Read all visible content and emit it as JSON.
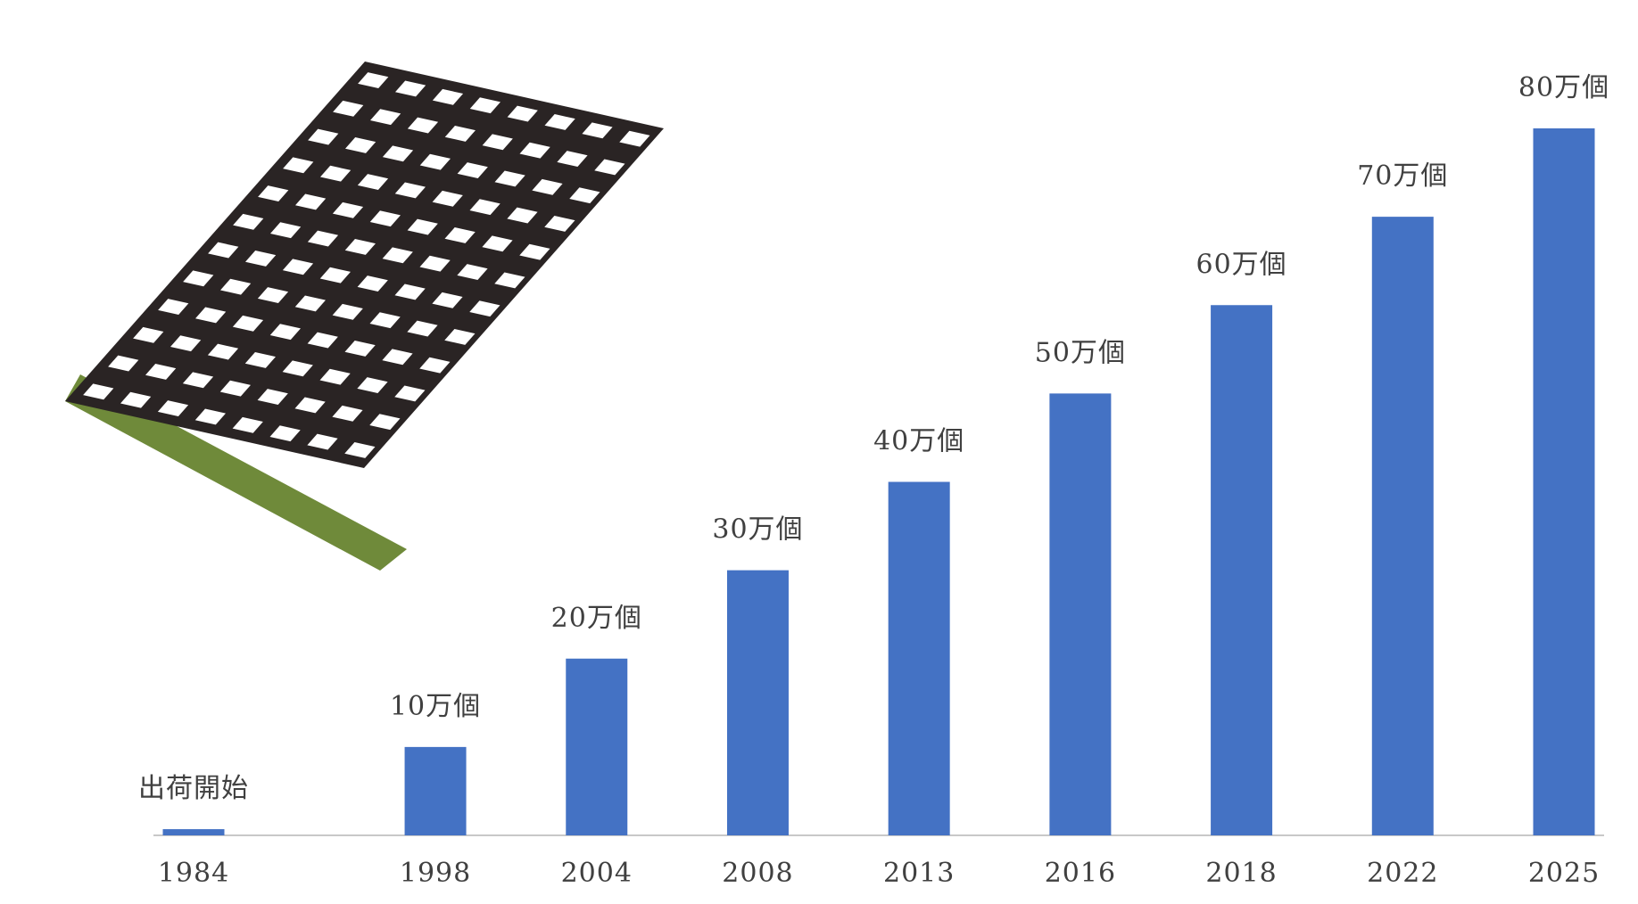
{
  "chart_data": {
    "type": "bar",
    "categories": [
      "1984",
      "1998",
      "2004",
      "2008",
      "2013",
      "2016",
      "2018",
      "2022",
      "2025"
    ],
    "values": [
      0.7,
      10,
      20,
      30,
      40,
      50,
      60,
      70,
      80
    ],
    "value_labels": [
      "出荷開始",
      "10万個",
      "20万個",
      "30万個",
      "40万個",
      "50万個",
      "60万個",
      "70万個",
      "80万個"
    ],
    "color": "#4472c4"
  }
}
